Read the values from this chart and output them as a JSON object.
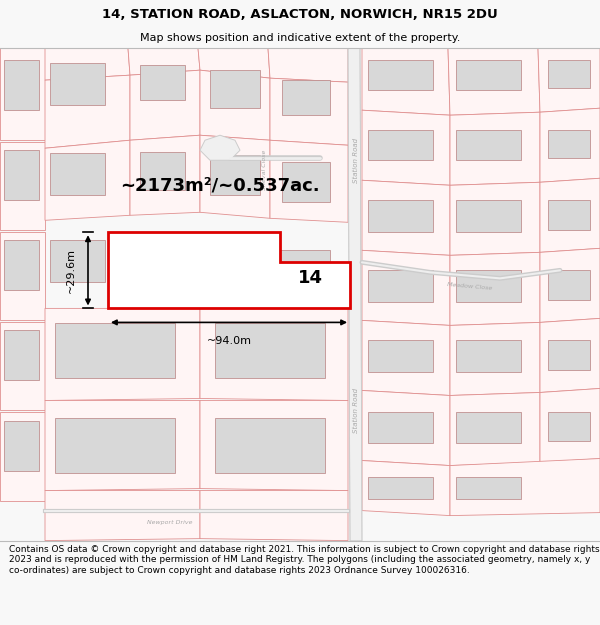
{
  "title": "14, STATION ROAD, ASLACTON, NORWICH, NR15 2DU",
  "subtitle": "Map shows position and indicative extent of the property.",
  "footer": "Contains OS data © Crown copyright and database right 2021. This information is subject to Crown copyright and database rights 2023 and is reproduced with the permission of HM Land Registry. The polygons (including the associated geometry, namely x, y co-ordinates) are subject to Crown copyright and database rights 2023 Ordnance Survey 100026316.",
  "area_text": "~2173m²/~0.537ac.",
  "width_label": "~94.0m",
  "height_label": "~29.6m",
  "plot_number": "14",
  "bg_color": "#f8f8f8",
  "map_bg": "#ffffff",
  "parcel_stroke": "#e09090",
  "parcel_fill": "#fff5f5",
  "highlight_color": "#dd0000",
  "highlight_fill": "#ffffff",
  "building_fill": "#d8d8d8",
  "building_stroke": "#c09090",
  "road_gray": "#d0d0d0",
  "text_road": "#909090",
  "title_fontsize": 9.5,
  "subtitle_fontsize": 8,
  "footer_fontsize": 6.5
}
